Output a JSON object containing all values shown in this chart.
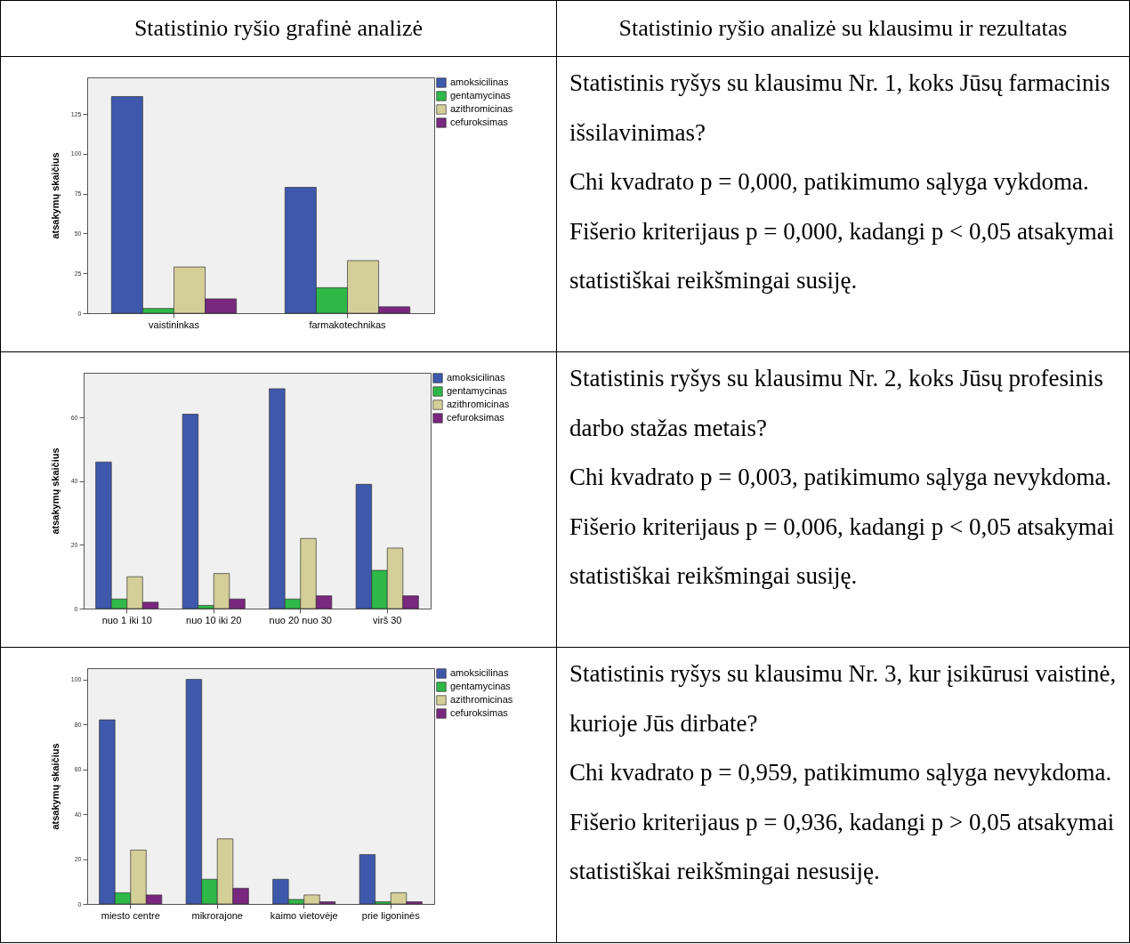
{
  "chart_data": [
    {
      "type": "bar",
      "title": "Statistinio ryšio grafinė analizė",
      "ylabel": "atsakymų skaičius",
      "categories": [
        "vaistininkas",
        "farmakotechnikas"
      ],
      "ylim": [
        0,
        148
      ],
      "yticks": [
        0,
        25,
        50,
        75,
        100,
        125
      ],
      "grid": false,
      "legend": "right",
      "series": [
        {
          "name": "amoksicilinas",
          "color": "#3e58ac",
          "values": [
            136,
            79
          ]
        },
        {
          "name": "gentamycinas",
          "color": "#2eb848",
          "values": [
            3,
            16
          ]
        },
        {
          "name": "azithromicinas",
          "color": "#d4cf98",
          "values": [
            29,
            33
          ]
        },
        {
          "name": "cefuroksimas",
          "color": "#79277f",
          "values": [
            9,
            4
          ]
        }
      ]
    },
    {
      "type": "other",
      "title": "Statistinio ryšio analizė su klausimu ir rezultatas",
      "annotations": [
        "Statistinis ryšys su klausimu Nr. 1, koks Jūsų farmacinis išsilavinimas?",
        "Chi kvadrato p = 0,000, patikimumo sąlyga vykdoma.",
        "Fišerio kriterijaus p = 0,000, kadangi p < 0,05 atsakymai statistiškai reikšmingai susiję."
      ]
    },
    {
      "type": "bar",
      "ylabel": "atsakymų skaičius",
      "categories": [
        "nuo 1 iki 10",
        "nuo 10 iki 20",
        "nuo 20 nuo 30",
        "virš 30"
      ],
      "ylim": [
        0,
        74
      ],
      "yticks": [
        0,
        20,
        40,
        60
      ],
      "grid": false,
      "legend": "right",
      "series": [
        {
          "name": "amoksicilinas",
          "color": "#3e58ac",
          "values": [
            46,
            61,
            69,
            39
          ]
        },
        {
          "name": "gentamycinas",
          "color": "#2eb848",
          "values": [
            3,
            1,
            3,
            12
          ]
        },
        {
          "name": "azithromicinas",
          "color": "#d4cf98",
          "values": [
            10,
            11,
            22,
            19
          ]
        },
        {
          "name": "cefuroksimas",
          "color": "#79277f",
          "values": [
            2,
            3,
            4,
            4
          ]
        }
      ]
    },
    {
      "type": "other",
      "annotations": [
        "Statistinis ryšys su klausimu Nr. 2, koks Jūsų profesinis darbo stažas metais?",
        "Chi kvadrato p = 0,003, patikimumo sąlyga nevykdoma.",
        "Fišerio kriterijaus p = 0,006, kadangi p < 0,05 atsakymai statistiškai reikšmingai susiję."
      ]
    },
    {
      "type": "bar",
      "ylabel": "atsakymų skaičius",
      "categories": [
        "miesto centre",
        "mikrorajone",
        "kaimo vietovėje",
        "prie ligoninės"
      ],
      "ylim": [
        0,
        105
      ],
      "yticks": [
        0,
        20,
        40,
        60,
        80,
        100
      ],
      "grid": false,
      "legend": "right",
      "series": [
        {
          "name": "amoksicilinas",
          "color": "#3e58ac",
          "values": [
            82,
            100,
            11,
            22
          ]
        },
        {
          "name": "gentamycinas",
          "color": "#2eb848",
          "values": [
            5,
            11,
            2,
            1
          ]
        },
        {
          "name": "azithromicinas",
          "color": "#d4cf98",
          "values": [
            24,
            29,
            4,
            5
          ]
        },
        {
          "name": "cefuroksimas",
          "color": "#79277f",
          "values": [
            4,
            7,
            1,
            1
          ]
        }
      ]
    },
    {
      "type": "other",
      "annotations": [
        "Statistinis ryšys su klausimu Nr. 3, kur įsikūrusi vaistinė, kurioje Jūs dirbate?",
        "Chi kvadrato p = 0,959, patikimumo sąlyga nevykdoma.",
        "Fišerio kriterijaus p = 0,936, kadangi p > 0,05 atsakymai statistiškai reikšmingai nesusiję."
      ]
    }
  ]
}
